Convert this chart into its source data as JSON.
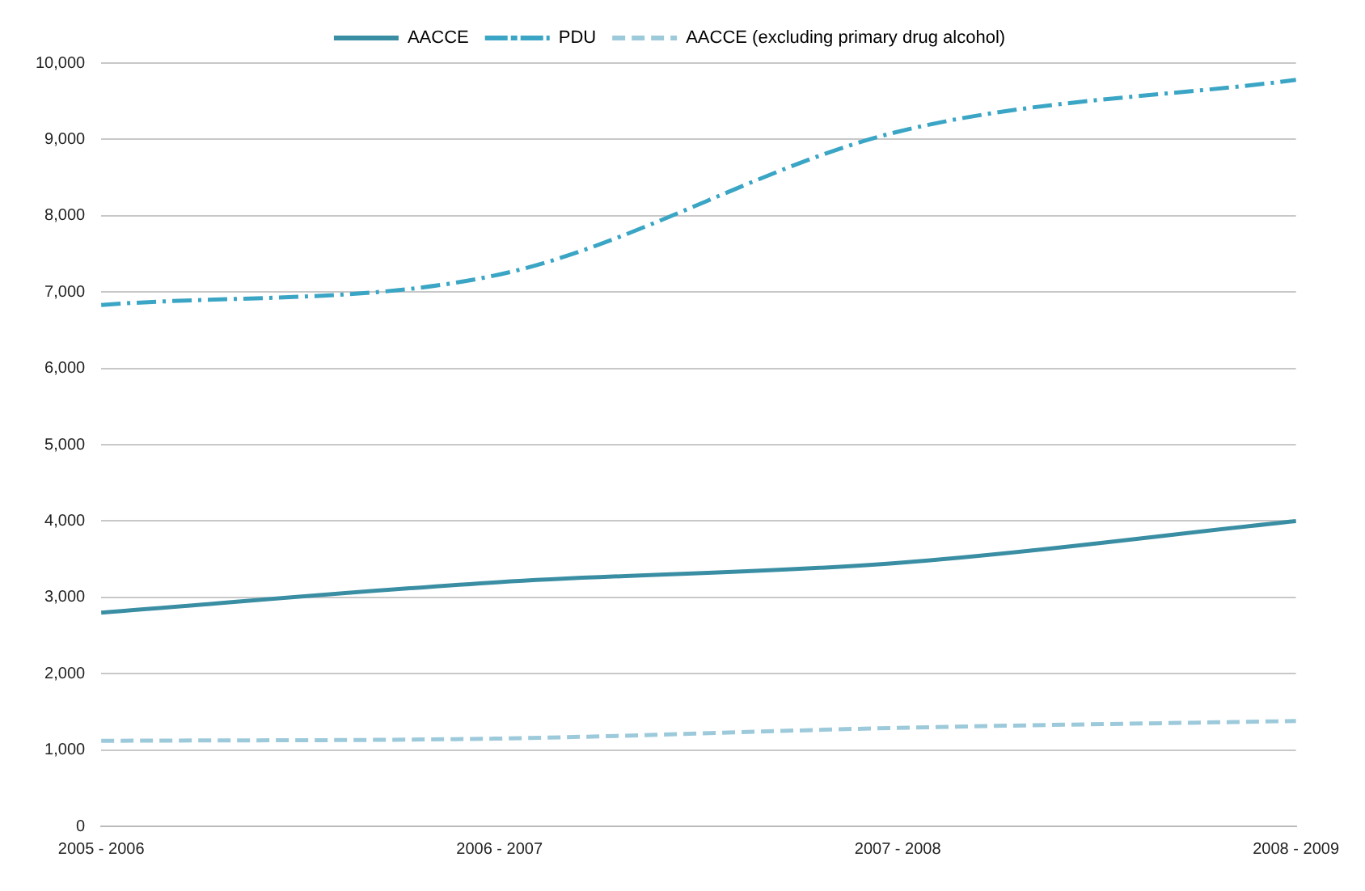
{
  "chart_data": {
    "type": "line",
    "categories": [
      "2005 - 2006",
      "2006 - 2007",
      "2007 - 2008",
      "2008 - 2009"
    ],
    "series": [
      {
        "name": "AACCE",
        "color": "#3a8ea3",
        "values": [
          2800,
          3200,
          3450,
          4000
        ],
        "line_style": "solid"
      },
      {
        "name": "PDU",
        "color": "#3aa5c4",
        "values": [
          6830,
          7230,
          9100,
          9780
        ],
        "line_style": "dashdot"
      },
      {
        "name": "AACCE (excluding primary drug alcohol)",
        "color": "#9dcadb",
        "values": [
          1120,
          1150,
          1290,
          1380
        ],
        "line_style": "dashed"
      }
    ],
    "ylim": [
      0,
      10000
    ],
    "yticks": [
      {
        "value": 0,
        "label": "0"
      },
      {
        "value": 1000,
        "label": "1,000"
      },
      {
        "value": 2000,
        "label": "2,000"
      },
      {
        "value": 3000,
        "label": "3,000"
      },
      {
        "value": 4000,
        "label": "4,000"
      },
      {
        "value": 5000,
        "label": "5,000"
      },
      {
        "value": 6000,
        "label": "6,000"
      },
      {
        "value": 7000,
        "label": "7,000"
      },
      {
        "value": 8000,
        "label": "8,000"
      },
      {
        "value": 9000,
        "label": "9,000"
      },
      {
        "value": 10000,
        "label": "10,000"
      }
    ],
    "grid": "y",
    "legend": "top",
    "marker": "none"
  }
}
